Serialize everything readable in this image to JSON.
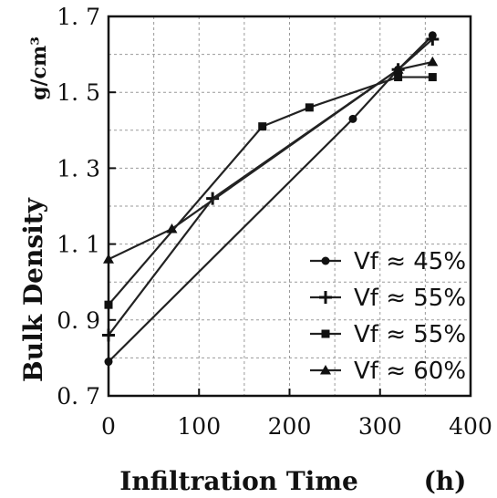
{
  "chart_data": {
    "type": "line",
    "xlabel": "Infiltration Time",
    "xunit": "(h)",
    "ylabel": "Bulk Density",
    "yunit": "g/cm³",
    "xlim": [
      0,
      400
    ],
    "ylim": [
      0.7,
      1.7
    ],
    "xticks": [
      "0",
      "100",
      "200",
      "300",
      "400"
    ],
    "yticks": [
      "0. 7",
      "0. 9",
      "1. 1",
      "1. 3",
      "1. 5",
      "1. 7"
    ],
    "ytick_values": [
      0.7,
      0.9,
      1.1,
      1.3,
      1.5,
      1.7
    ],
    "xtick_values": [
      0,
      100,
      200,
      300,
      400
    ],
    "grid": true,
    "legend_position": "lower-right",
    "series": [
      {
        "name": "Vf ≈ 45%",
        "marker": "circle",
        "x": [
          0,
          270,
          320,
          358
        ],
        "y": [
          0.79,
          1.43,
          1.56,
          1.65
        ]
      },
      {
        "name": "Vf ≈ 55%",
        "marker": "plus",
        "x": [
          0,
          115,
          320,
          358
        ],
        "y": [
          0.86,
          1.22,
          1.56,
          1.64
        ]
      },
      {
        "name": "Vf ≈ 55%",
        "marker": "square",
        "x": [
          0,
          170,
          222,
          320,
          358
        ],
        "y": [
          0.94,
          1.41,
          1.46,
          1.54,
          1.54
        ]
      },
      {
        "name": "Vf ≈ 60%",
        "marker": "triangle",
        "x": [
          0,
          70,
          320,
          358
        ],
        "y": [
          1.06,
          1.14,
          1.56,
          1.58
        ]
      }
    ]
  }
}
